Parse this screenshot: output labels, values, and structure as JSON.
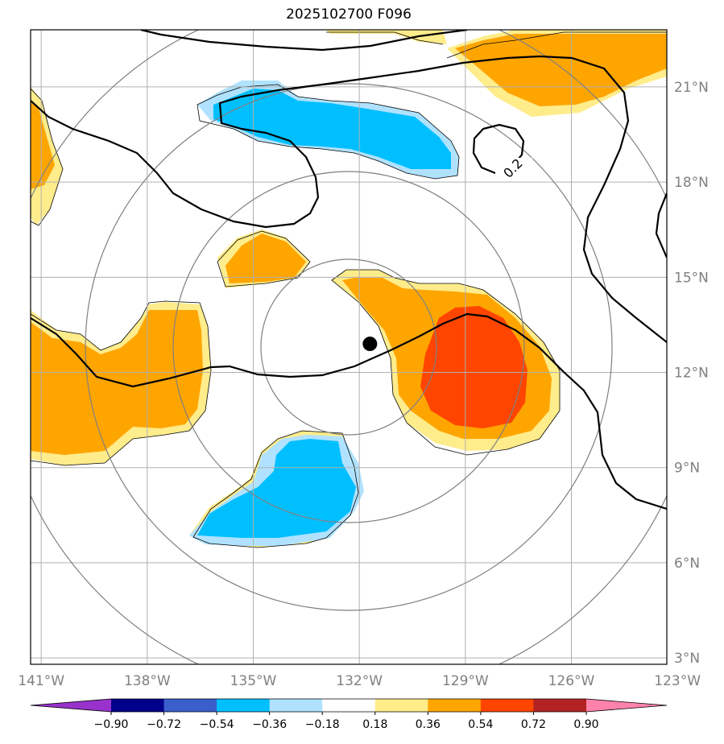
{
  "title": "2025102700 F096",
  "map": {
    "lon_range": [
      -141.3,
      -123.3
    ],
    "lat_range": [
      2.8,
      22.8
    ],
    "lon_ticks": [
      -141,
      -138,
      -135,
      -132,
      -129,
      -126,
      -123
    ],
    "lon_tick_labels": [
      "141°W",
      "138°W",
      "135°W",
      "132°W",
      "129°W",
      "126°W",
      "123°W"
    ],
    "lat_ticks": [
      3,
      6,
      9,
      12,
      15,
      18,
      21
    ],
    "lat_tick_labels": [
      "3°N",
      "6°N",
      "9°N",
      "12°N",
      "15°N",
      "18°N",
      "21°N"
    ],
    "center_marker": {
      "lon": -131.7,
      "lat": 12.9
    },
    "contour_label": "0.2",
    "gridlines": true
  },
  "colorbar": {
    "levels": [
      "−0.90",
      "−0.72",
      "−0.54",
      "−0.36",
      "−0.18",
      "0.18",
      "0.36",
      "0.54",
      "0.72",
      "0.90"
    ],
    "colors": [
      "#9932cc",
      "#00008b",
      "#3a5fcd",
      "#00bfff",
      "#b0e2ff",
      "#ffffff",
      "#ffec8b",
      "#ffa500",
      "#ff4500",
      "#b22222",
      "#ff82ab"
    ],
    "extend": "both"
  }
}
